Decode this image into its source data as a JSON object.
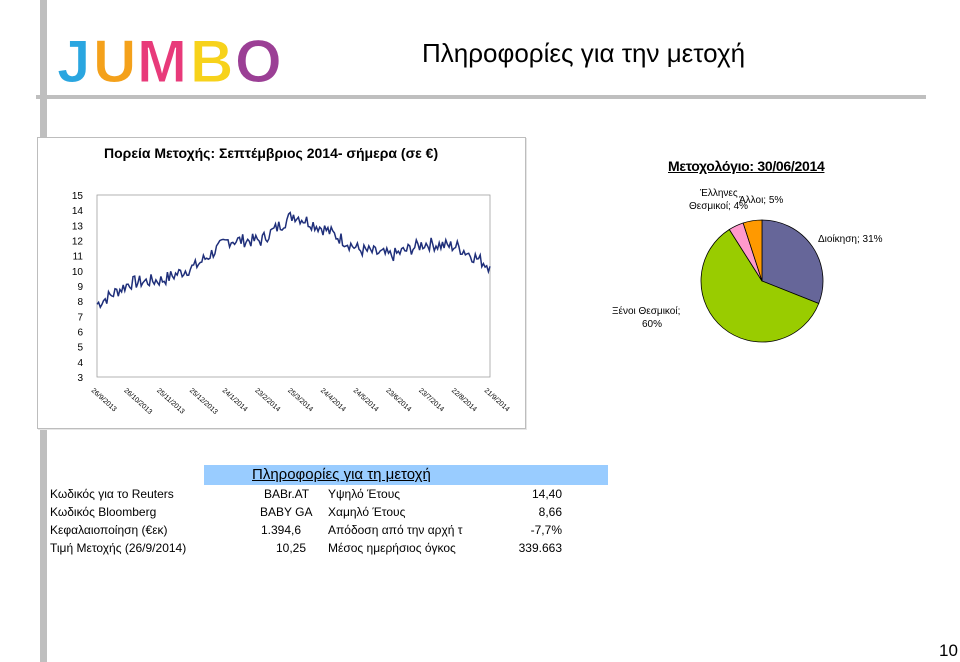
{
  "header": {
    "title": "Πληροφορίες για την μετοχή",
    "logo_text": "JUMBO"
  },
  "line_chart": {
    "title": "Πορεία Μετοχής: Σεπτέμβριος 2014- σήμερα (σε €)",
    "y_ticks": [
      "15",
      "14",
      "13",
      "12",
      "11",
      "10",
      "9",
      "8",
      "7",
      "6",
      "5",
      "4",
      "3"
    ],
    "x_ticks": [
      "26/9/2013",
      "26/10/2013",
      "25/11/2013",
      "25/12/2013",
      "24/1/2014",
      "23/2/2014",
      "25/3/2014",
      "24/4/2014",
      "24/5/2014",
      "23/6/2014",
      "23/7/2014",
      "22/8/2014",
      "21/9/2014"
    ],
    "line_color": "#1f2f7a"
  },
  "pie_chart": {
    "title": "Μετοχολόγιο: 30/06/2014",
    "labels": {
      "management": "Διοίκηση; 31%",
      "foreign_1": "Ξένοι Θεσμικοί;",
      "foreign_2": "60%",
      "greek_1": "Έλληνες",
      "greek_2": "Θεσμικοί; 4%",
      "other": "Άλλοι; 5%"
    }
  },
  "chart_data": [
    {
      "type": "line",
      "title": "Πορεία Μετοχής: Σεπτέμβριος 2014- σήμερα (σε €)",
      "xlabel": "",
      "ylabel": "",
      "ylim": [
        3,
        15
      ],
      "x": [
        "26/9/2013",
        "26/10/2013",
        "25/11/2013",
        "25/12/2013",
        "24/1/2014",
        "23/2/2014",
        "25/3/2014",
        "24/4/2014",
        "24/5/2014",
        "23/6/2014",
        "23/7/2014",
        "22/8/2014",
        "21/9/2014"
      ],
      "series": [
        {
          "values": [
            7.8,
            9.2,
            9.4,
            10.3,
            12.0,
            12.0,
            13.7,
            12.7,
            11.4,
            11.0,
            11.8,
            11.6,
            10.3
          ]
        }
      ]
    },
    {
      "type": "pie",
      "title": "Μετοχολόγιο: 30/06/2014",
      "categories": [
        "Διοίκηση",
        "Ξένοι Θεσμικοί",
        "Έλληνες Θεσμικοί",
        "Άλλοι"
      ],
      "values": [
        31,
        60,
        4,
        5
      ],
      "colors": [
        "#666699",
        "#99cc00",
        "#ff99cc",
        "#ff9900"
      ]
    }
  ],
  "info": {
    "title": "Πληροφορίες για τη μετοχή",
    "rows": [
      {
        "label1": "Κωδικός για το Reuters",
        "value1": "BABr.AT",
        "label2": "Υψηλό Έτους",
        "value2": "14,40"
      },
      {
        "label1": "Κωδικός Bloomberg",
        "value1": "BABY GA",
        "label2": "Χαμηλό Έτους",
        "value2": "8,66"
      },
      {
        "label1": "Κεφαλαιοποίηση (€εκ)",
        "value1": "1.394,6",
        "label2": "Απόδοση από την αρχή τ",
        "value2": "-7,7%"
      },
      {
        "label1": "Τιμή Μετοχής (26/9/2014)",
        "value1": "10,25",
        "label2": "Μέσος ημερήσιος όγκος",
        "value2": "339.663"
      }
    ]
  },
  "footer": {
    "page_number": "10"
  }
}
